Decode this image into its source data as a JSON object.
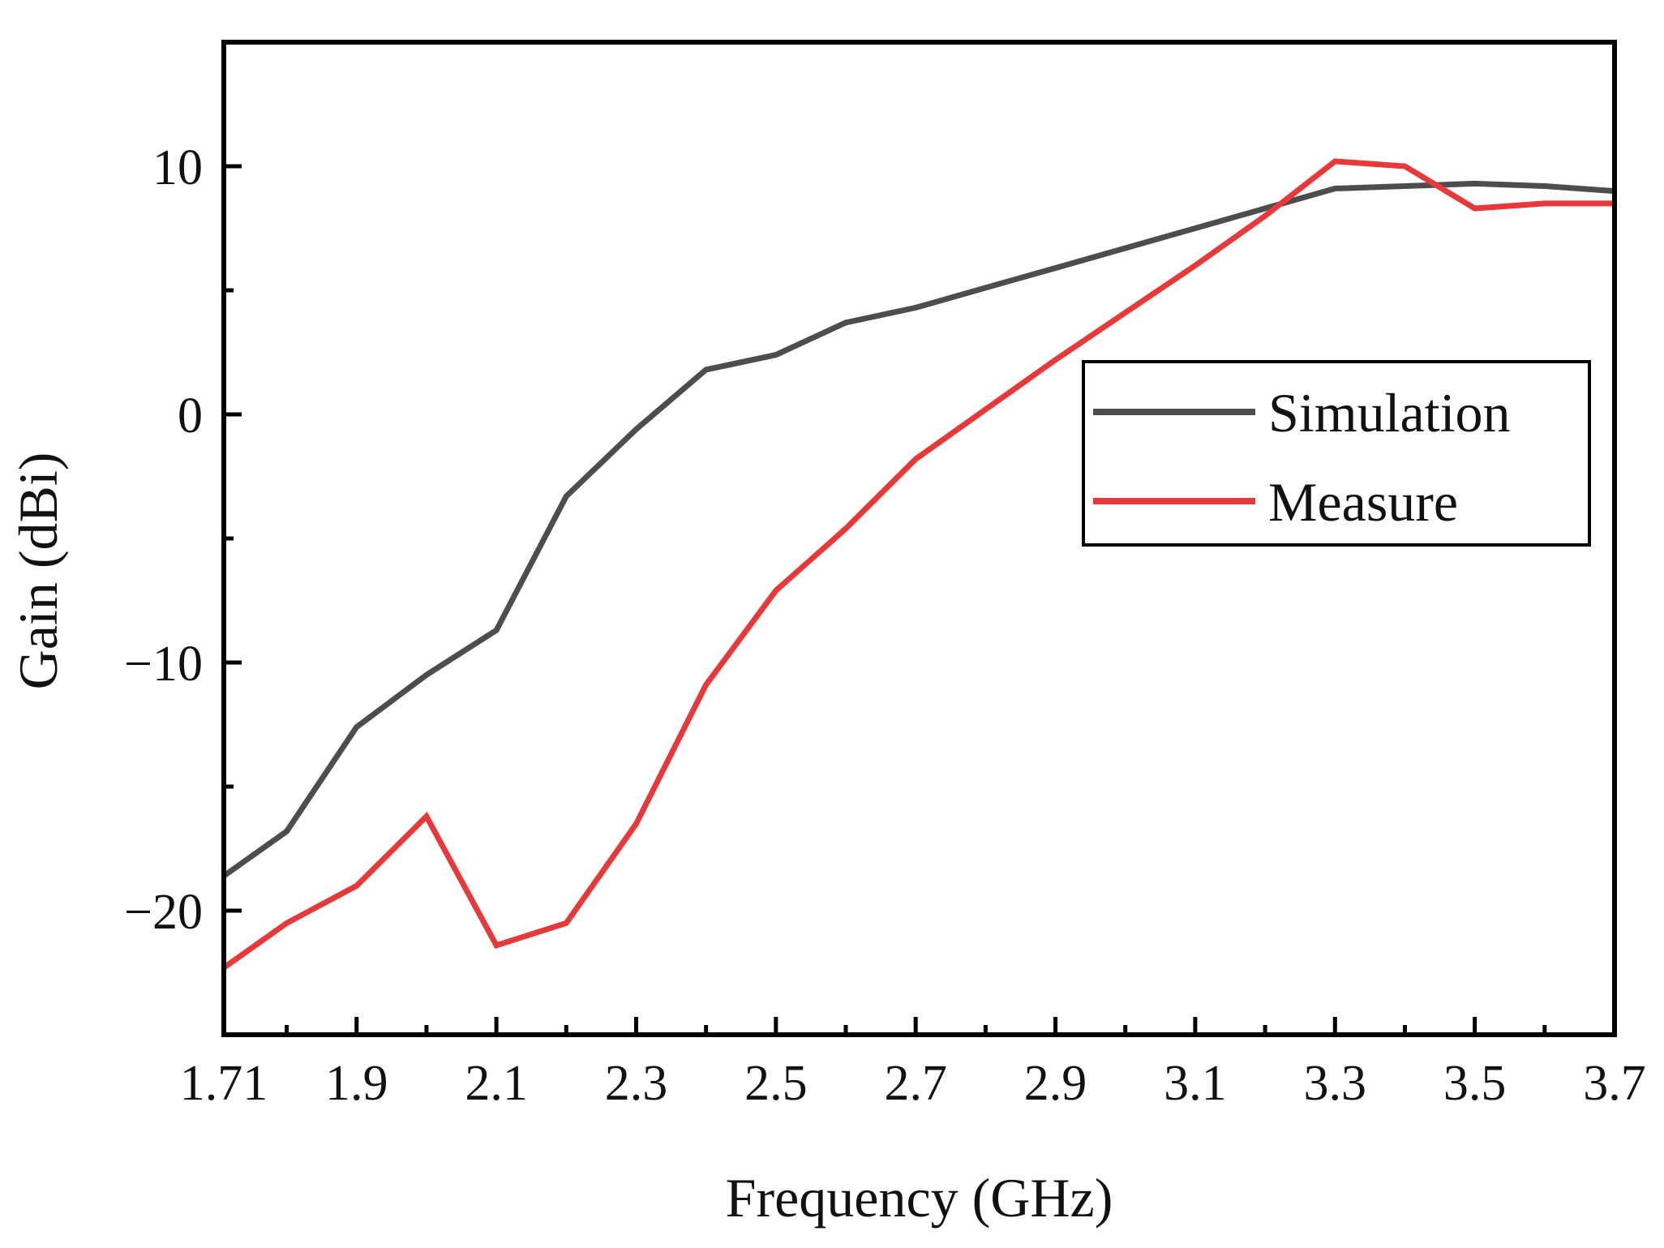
{
  "chart_data": {
    "type": "line",
    "xlabel": "Frequency (GHz)",
    "ylabel": "Gain (dBi)",
    "xlim": [
      1.71,
      3.7
    ],
    "ylim": [
      -25,
      15
    ],
    "x_ticks": [
      1.71,
      1.9,
      2.1,
      2.3,
      2.5,
      2.7,
      2.9,
      3.1,
      3.3,
      3.5,
      3.7
    ],
    "x_tick_labels": [
      "1.71",
      "1.9",
      "2.1",
      "2.3",
      "2.5",
      "2.7",
      "2.9",
      "3.1",
      "3.3",
      "3.5",
      "3.7"
    ],
    "x_minor_ticks": [
      1.8,
      2.0,
      2.2,
      2.4,
      2.6,
      2.8,
      3.0,
      3.2,
      3.4,
      3.6
    ],
    "y_ticks": [
      -20,
      -10,
      0,
      10
    ],
    "y_tick_labels": [
      "−20",
      "−10",
      "0",
      "10"
    ],
    "y_minor_ticks": [
      -15,
      -5,
      5
    ],
    "grid": false,
    "legend_position": "right",
    "series": [
      {
        "name": "Simulation",
        "color": "#4d4d4d",
        "x": [
          1.71,
          1.8,
          1.9,
          2.0,
          2.1,
          2.2,
          2.3,
          2.4,
          2.5,
          2.6,
          2.7,
          2.8,
          2.9,
          3.0,
          3.1,
          3.2,
          3.3,
          3.4,
          3.5,
          3.6,
          3.7
        ],
        "values": [
          -18.6,
          -16.8,
          -12.6,
          -10.5,
          -8.7,
          -3.3,
          -0.6,
          1.8,
          2.4,
          3.7,
          4.3,
          5.1,
          5.9,
          6.7,
          7.5,
          8.3,
          9.1,
          9.2,
          9.3,
          9.2,
          9.0
        ]
      },
      {
        "name": "Measure",
        "color": "#e8393a",
        "x": [
          1.71,
          1.8,
          1.9,
          2.0,
          2.1,
          2.2,
          2.3,
          2.4,
          2.5,
          2.6,
          2.7,
          2.8,
          2.9,
          3.0,
          3.1,
          3.2,
          3.3,
          3.4,
          3.5,
          3.6,
          3.7
        ],
        "values": [
          -22.3,
          -20.5,
          -19.0,
          -16.2,
          -21.4,
          -20.5,
          -16.5,
          -10.9,
          -7.1,
          -4.6,
          -1.8,
          0.2,
          2.2,
          4.1,
          6.0,
          8.0,
          10.2,
          10.0,
          8.3,
          8.5,
          8.5
        ]
      }
    ]
  }
}
